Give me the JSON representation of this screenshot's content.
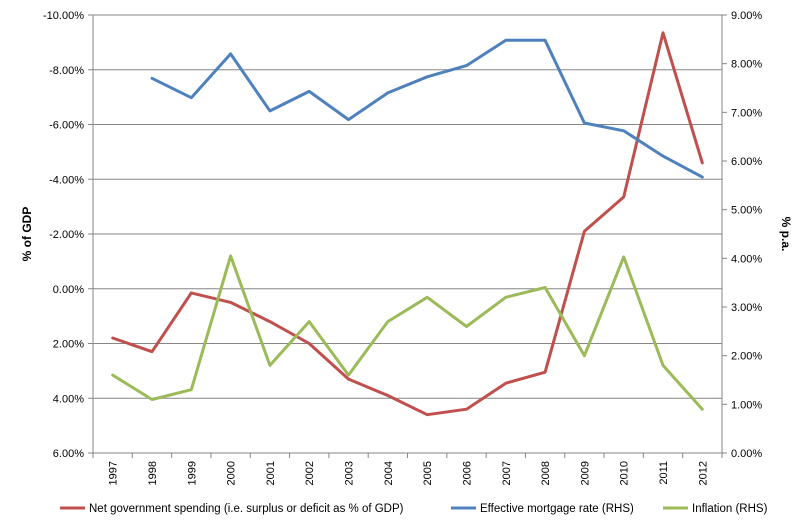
{
  "chart_data": {
    "type": "line",
    "title": "",
    "x": [
      "1997",
      "1998",
      "1999",
      "2000",
      "2001",
      "2002",
      "2003",
      "2004",
      "2005",
      "2006",
      "2007",
      "2008",
      "2009",
      "2010",
      "2011",
      "2012"
    ],
    "left_axis": {
      "label": "% of GDP",
      "reversed": true,
      "range": [
        -10,
        6
      ],
      "tick_labels": [
        "-10.00%",
        "-8.00%",
        "-6.00%",
        "-4.00%",
        "-2.00%",
        "0.00%",
        "2.00%",
        "4.00%",
        "6.00%"
      ]
    },
    "right_axis": {
      "label": "% p.a.",
      "range": [
        0,
        9
      ],
      "tick_labels": [
        "9.00%",
        "8.00%",
        "7.00%",
        "6.00%",
        "5.00%",
        "4.00%",
        "3.00%",
        "2.00%",
        "1.00%",
        "0.00%"
      ]
    },
    "grid": "horizontal",
    "legend_position": "bottom",
    "series": [
      {
        "name": "Net government spending (i.e. surplus or deficit as % of GDP)",
        "axis": "left",
        "color": "#c0504d",
        "values": [
          1.8,
          2.3,
          0.15,
          0.5,
          1.2,
          2.0,
          3.3,
          3.9,
          4.6,
          4.4,
          3.45,
          3.05,
          -2.1,
          -3.35,
          -9.35,
          -4.6
        ]
      },
      {
        "name": "Effective mortgage rate (RHS)",
        "axis": "right",
        "color": "#4f81bd",
        "values": [
          null,
          7.7,
          7.3,
          8.2,
          7.03,
          7.43,
          6.85,
          7.4,
          7.73,
          7.96,
          8.48,
          8.48,
          6.78,
          6.62,
          6.1,
          5.67
        ]
      },
      {
        "name": "Inflation (RHS)",
        "axis": "right",
        "color": "#9bbb59",
        "values": [
          1.6,
          1.1,
          1.3,
          4.05,
          1.8,
          2.7,
          1.6,
          2.7,
          3.2,
          2.6,
          3.2,
          3.4,
          2.0,
          4.03,
          1.8,
          0.9
        ]
      }
    ]
  }
}
